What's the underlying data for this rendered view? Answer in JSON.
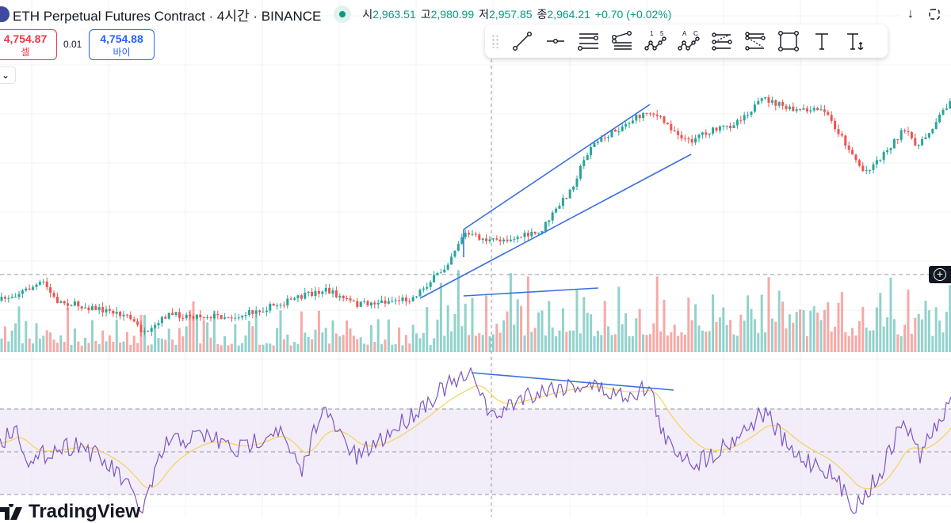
{
  "header": {
    "title": "ETH Perpetual Futures Contract · 4시간 · BINANCE",
    "ohlc": [
      {
        "label": "시",
        "value": "2,963.51"
      },
      {
        "label": "고",
        "value": "2,980.99"
      },
      {
        "label": "저",
        "value": "2,957.85"
      },
      {
        "label": "종",
        "value": "2,964.21"
      }
    ],
    "change": "+0.70 (+0.02%)"
  },
  "trade": {
    "sell_price": "4,754.87",
    "sell_label": "셀",
    "spread": "0.01",
    "buy_price": "4,754.88",
    "buy_label": "바이"
  },
  "toolbar": {
    "tools": [
      "trend-line",
      "horizontal-ray",
      "parallel-channel",
      "pitchfork",
      "xabcd-pattern-15",
      "abcd-pattern",
      "fib-retracement",
      "fib-extension",
      "rectangle",
      "text",
      "anchored-text"
    ],
    "labels": {
      "n1": "1",
      "n5": "5",
      "a": "A",
      "c": "C"
    }
  },
  "brand": {
    "name": "TradingView"
  },
  "colors": {
    "up": "#26a69a",
    "down": "#ef5350",
    "drawing": "#3b6fe0",
    "rsi": "#7e57c2",
    "rsi_ma": "#f5d35a"
  }
}
